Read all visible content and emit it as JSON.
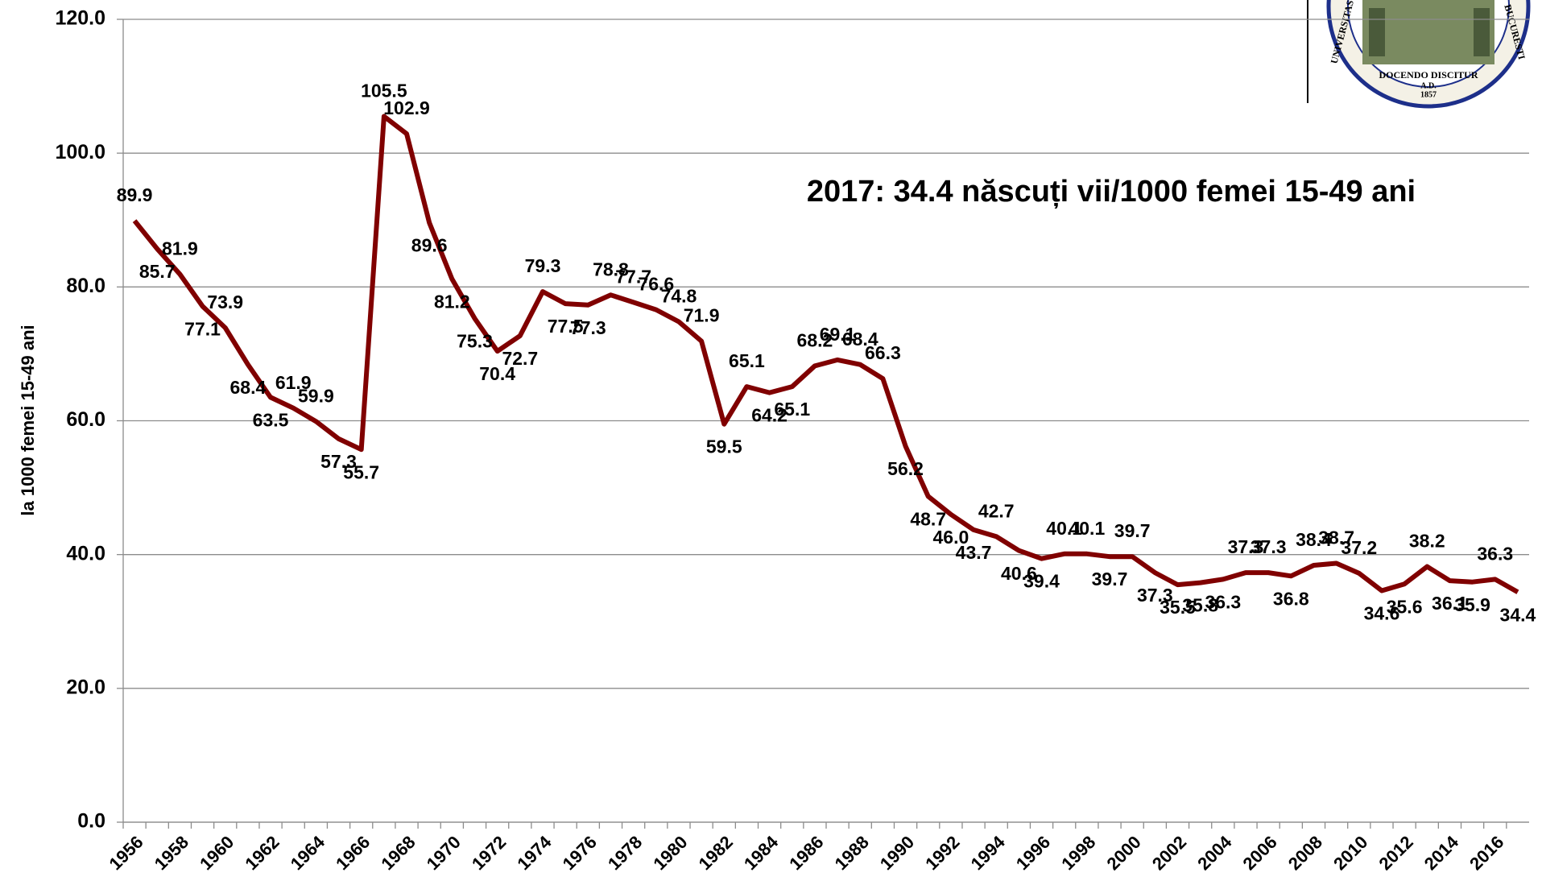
{
  "chart_data": {
    "type": "line",
    "annotation": "2017: 34.4 născuți vii/1000 femei 15-49 ani",
    "y_label": "la 1000 femei 15-49 ani",
    "categories": [
      "1956",
      null,
      "1958",
      null,
      "1960",
      null,
      "1962",
      null,
      "1964",
      null,
      "1966",
      null,
      "1968",
      null,
      "1970",
      null,
      "1972",
      null,
      "1974",
      null,
      "1976",
      null,
      "1978",
      null,
      "1980",
      null,
      "1982",
      null,
      "1984",
      null,
      "1986",
      null,
      "1988",
      null,
      "1990",
      null,
      "1992",
      null,
      "1994",
      null,
      "1996",
      null,
      "1998",
      null,
      "2000",
      null,
      "2002",
      null,
      "2004",
      null,
      "2006",
      null,
      "2008",
      null,
      "2010",
      null,
      "2012",
      null,
      "2014",
      null,
      "2016",
      null
    ],
    "values": [
      89.9,
      85.7,
      81.9,
      77.1,
      73.9,
      68.4,
      63.5,
      61.9,
      59.9,
      57.3,
      55.7,
      105.5,
      102.9,
      89.6,
      81.2,
      75.3,
      70.4,
      72.7,
      79.3,
      77.5,
      77.3,
      78.8,
      77.7,
      76.6,
      74.8,
      71.9,
      59.5,
      65.1,
      64.2,
      65.1,
      68.2,
      69.1,
      68.4,
      66.3,
      56.2,
      48.7,
      46.0,
      43.7,
      42.7,
      40.6,
      39.4,
      40.1,
      40.1,
      39.7,
      39.7,
      37.3,
      35.5,
      35.8,
      36.3,
      37.3,
      37.3,
      36.8,
      38.4,
      38.7,
      37.2,
      34.6,
      35.6,
      38.2,
      36.1,
      35.9,
      36.3,
      34.4
    ],
    "value_labels": [
      "89.9",
      "85.7",
      "81.9",
      "77.1",
      "73.9",
      "68.4",
      "63.5",
      "61.9",
      "59.9",
      "57.3",
      "55.7",
      "105.5",
      "102.9",
      "89.6",
      "81.2",
      "75.3",
      "70.4",
      "72.7",
      "79.3",
      "77.5",
      "77.3",
      "78.8",
      "77.7",
      "76.6",
      "74.8",
      "71.9",
      "59.5",
      "65.1",
      "64.2",
      "65.1",
      "68.2",
      "69.1",
      "68.4",
      "66.3",
      "56.2",
      "48.7",
      "46.0",
      "43.7",
      "42.7",
      "40.6",
      "39.4",
      "40.1",
      "40.1",
      "39.7",
      "39.7",
      "37.3",
      "35.5",
      "35.8",
      "36.3",
      "37.3",
      "37.3",
      "36.8",
      "38.4",
      "38.7",
      "37.2",
      "34.6",
      "35.6",
      "38.2",
      "36.1",
      "35.9",
      "36.3",
      "34.4"
    ],
    "color": "#800000",
    "ylim": [
      0,
      120
    ],
    "yticks": [
      {
        "value": 0,
        "label": "0.0"
      },
      {
        "value": 20,
        "label": "20.0"
      },
      {
        "value": 40,
        "label": "40.0"
      },
      {
        "value": 60,
        "label": "60.0"
      },
      {
        "value": 80,
        "label": "80.0"
      },
      {
        "value": 100,
        "label": "100.0"
      },
      {
        "value": 120,
        "label": "120.0"
      }
    ],
    "grid": true
  },
  "logo": {
    "motto": "DOCENDO DISCITUR",
    "era": "A.D.",
    "year": "1857",
    "left_text": "UNIVERSITAS",
    "right_text": "BUCURESTI"
  }
}
